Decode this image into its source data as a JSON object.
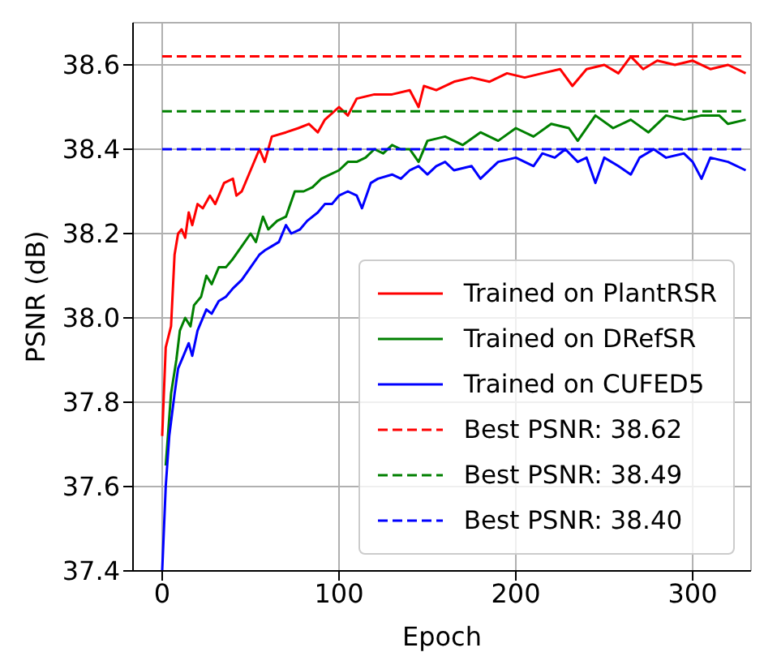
{
  "chart_data": {
    "type": "line",
    "xlabel": "Epoch",
    "ylabel": "PSNR (dB)",
    "xlim": [
      -16.5,
      333
    ],
    "ylim": [
      37.4,
      38.7
    ],
    "xticks": [
      0,
      100,
      200,
      300
    ],
    "yticks": [
      37.4,
      37.6,
      37.8,
      {
        "value": 38.0,
        "label": "38.0"
      },
      38.2,
      38.4,
      38.6
    ],
    "grid": true,
    "legend": "bottom right",
    "marker": "none",
    "series": [
      {
        "name": "Trained on PlantRSR",
        "color": "#ff0000",
        "line_style": "solid",
        "x": [
          0,
          2,
          5,
          7,
          9,
          11,
          13,
          15,
          17,
          20,
          23,
          27,
          30,
          35,
          40,
          42,
          45,
          50,
          55,
          58,
          62,
          70,
          77,
          83,
          88,
          92,
          100,
          105,
          110,
          120,
          130,
          140,
          145,
          148,
          155,
          165,
          175,
          185,
          195,
          205,
          215,
          225,
          232,
          240,
          250,
          258,
          265,
          272,
          280,
          290,
          300,
          310,
          320,
          330
        ],
        "values": [
          37.72,
          37.93,
          37.98,
          38.15,
          38.2,
          38.21,
          38.19,
          38.25,
          38.22,
          38.27,
          38.26,
          38.29,
          38.27,
          38.32,
          38.33,
          38.29,
          38.3,
          38.35,
          38.4,
          38.37,
          38.43,
          38.44,
          38.45,
          38.46,
          38.44,
          38.47,
          38.5,
          38.48,
          38.52,
          38.53,
          38.53,
          38.54,
          38.5,
          38.55,
          38.54,
          38.56,
          38.57,
          38.56,
          38.58,
          38.57,
          38.58,
          38.59,
          38.55,
          38.59,
          38.6,
          38.58,
          38.62,
          38.59,
          38.61,
          38.6,
          38.61,
          38.59,
          38.6,
          38.58
        ]
      },
      {
        "name": "Trained on DRefSR",
        "color": "#008000",
        "line_style": "solid",
        "x": [
          2,
          5,
          8,
          10,
          13,
          16,
          18,
          22,
          25,
          28,
          32,
          36,
          40,
          45,
          50,
          53,
          57,
          60,
          65,
          70,
          75,
          80,
          85,
          90,
          95,
          100,
          105,
          110,
          115,
          120,
          125,
          130,
          135,
          140,
          145,
          150,
          160,
          170,
          180,
          190,
          200,
          210,
          220,
          230,
          235,
          245,
          255,
          265,
          275,
          285,
          295,
          305,
          315,
          320,
          330
        ],
        "values": [
          37.65,
          37.82,
          37.9,
          37.97,
          38.0,
          37.98,
          38.03,
          38.05,
          38.1,
          38.08,
          38.12,
          38.12,
          38.14,
          38.17,
          38.2,
          38.18,
          38.24,
          38.21,
          38.23,
          38.24,
          38.3,
          38.3,
          38.31,
          38.33,
          38.34,
          38.35,
          38.37,
          38.37,
          38.38,
          38.4,
          38.39,
          38.41,
          38.4,
          38.4,
          38.37,
          38.42,
          38.43,
          38.41,
          38.44,
          38.42,
          38.45,
          38.43,
          38.46,
          38.45,
          38.42,
          38.48,
          38.45,
          38.47,
          38.44,
          38.48,
          38.47,
          38.48,
          38.48,
          38.46,
          38.47
        ]
      },
      {
        "name": "Trained on CUFED5",
        "color": "#0000ff",
        "line_style": "solid",
        "x": [
          0,
          2,
          4,
          7,
          9,
          12,
          15,
          17,
          20,
          25,
          28,
          32,
          36,
          40,
          45,
          50,
          55,
          58,
          62,
          66,
          70,
          73,
          78,
          82,
          88,
          92,
          96,
          100,
          105,
          110,
          113,
          118,
          122,
          130,
          135,
          140,
          145,
          150,
          155,
          160,
          165,
          175,
          180,
          190,
          200,
          210,
          215,
          222,
          228,
          235,
          240,
          245,
          250,
          258,
          265,
          270,
          278,
          285,
          295,
          300,
          305,
          310,
          320,
          330
        ],
        "values": [
          37.4,
          37.6,
          37.72,
          37.82,
          37.88,
          37.91,
          37.94,
          37.91,
          37.97,
          38.02,
          38.01,
          38.04,
          38.05,
          38.07,
          38.09,
          38.12,
          38.15,
          38.16,
          38.17,
          38.18,
          38.22,
          38.2,
          38.21,
          38.23,
          38.25,
          38.27,
          38.27,
          38.29,
          38.3,
          38.29,
          38.26,
          38.32,
          38.33,
          38.34,
          38.33,
          38.35,
          38.36,
          38.34,
          38.36,
          38.37,
          38.35,
          38.36,
          38.33,
          38.37,
          38.38,
          38.36,
          38.39,
          38.38,
          38.4,
          38.37,
          38.38,
          38.32,
          38.38,
          38.36,
          38.34,
          38.38,
          38.4,
          38.38,
          38.39,
          38.37,
          38.33,
          38.38,
          38.37,
          38.35
        ]
      },
      {
        "name": "Best PSNR: 38.62",
        "color": "#ff0000",
        "line_style": "dashed",
        "x": [
          0,
          330
        ],
        "values": [
          38.62,
          38.62
        ]
      },
      {
        "name": "Best PSNR: 38.49",
        "color": "#008000",
        "line_style": "dashed",
        "x": [
          0,
          330
        ],
        "values": [
          38.49,
          38.49
        ]
      },
      {
        "name": "Best PSNR: 38.40",
        "color": "#0000ff",
        "line_style": "dashed",
        "x": [
          0,
          330
        ],
        "values": [
          38.4,
          38.4
        ]
      }
    ]
  }
}
